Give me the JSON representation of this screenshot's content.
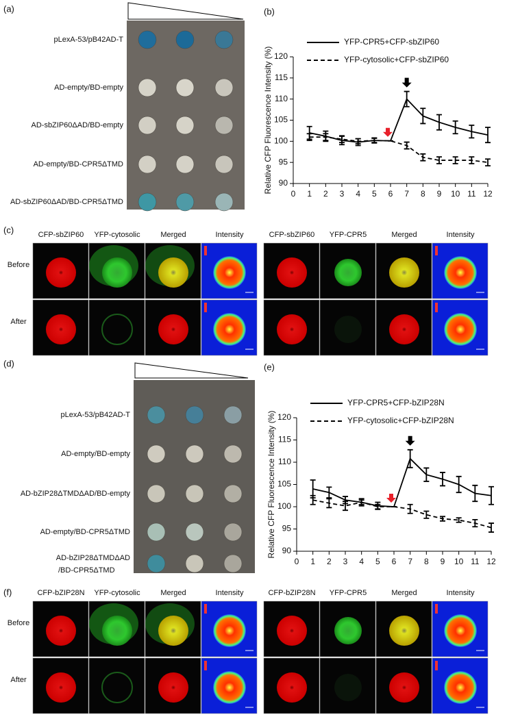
{
  "panels": {
    "a": {
      "label": "(a)",
      "rows": [
        "pLexA-53/pB42AD-T",
        "AD-empty/BD-empty",
        "AD-sbZIP60ΔAD/BD-empty",
        "AD-empty/BD-CPR5ΔTMD",
        "AD-sbZIP60ΔAD/BD-CPR5ΔTMD"
      ]
    },
    "c": {
      "label": "(c)",
      "rows": [
        "Before",
        "After"
      ],
      "groups": [
        [
          "CFP-sbZIP60",
          "YFP-cytosolic",
          "Merged",
          "Intensity"
        ],
        [
          "CFP-sbZIP60",
          "YFP-CPR5",
          "Merged",
          "Intensity"
        ]
      ]
    },
    "d": {
      "label": "(d)",
      "rows": [
        "pLexA-53/pB42AD-T",
        "AD-empty/BD-empty",
        "AD-bZIP28ΔTMDΔAD/BD-empty",
        "AD-empty/BD-CPR5ΔTMD",
        [
          "AD-bZIP28ΔTMDΔAD",
          "/BD-CPR5ΔTMD"
        ]
      ]
    },
    "f": {
      "label": "(f)",
      "rows": [
        "Before",
        "After"
      ],
      "groups": [
        [
          "CFP-bZIP28N",
          "YFP-cytosolic",
          "Merged",
          "Intensity"
        ],
        [
          "CFP-bZIP28N",
          "YFP-CPR5",
          "Merged",
          "Intensity"
        ]
      ]
    }
  },
  "chart_data": [
    {
      "type": "line",
      "panel_label": "(b)",
      "y_label": "Relative CFP Fluorescence Intensity (%)",
      "x": [
        1,
        2,
        3,
        4,
        5,
        6,
        7,
        8,
        9,
        10,
        11,
        12
      ],
      "xlim": [
        0,
        12
      ],
      "xticks": [
        0,
        1,
        2,
        3,
        4,
        5,
        6,
        7,
        8,
        9,
        10,
        11,
        12
      ],
      "ylim": [
        90,
        120
      ],
      "yticks": [
        90,
        95,
        100,
        105,
        110,
        115,
        120
      ],
      "series": [
        {
          "name": "YFP-CPR5+CFP-sbZIP60",
          "color": "#000000",
          "style": "solid",
          "values": [
            102,
            101.2,
            100.2,
            99.8,
            100.2,
            100.1,
            110,
            106,
            104.5,
            103.3,
            102.3,
            101.5
          ],
          "errors": [
            1.5,
            1.2,
            1,
            0.8,
            0.6,
            0,
            1.8,
            1.8,
            1.8,
            1.5,
            1.5,
            1.8
          ]
        },
        {
          "name": "YFP-cytosolic+CFP-sbZIP60",
          "color": "#000000",
          "style": "dashed",
          "values": [
            101,
            101,
            100.5,
            100,
            100.2,
            100.1,
            99,
            96.2,
            95.5,
            95.5,
            95.5,
            95
          ],
          "errors": [
            0.8,
            0.8,
            0.8,
            0.6,
            0.5,
            0,
            0.8,
            0.8,
            0.8,
            0.8,
            0.8,
            0.8
          ]
        }
      ]
    },
    {
      "type": "line",
      "panel_label": "(e)",
      "y_label": "Relative CFP Fluorescence Intensity (%)",
      "x": [
        1,
        2,
        3,
        4,
        5,
        6,
        7,
        8,
        9,
        10,
        11,
        12
      ],
      "xlim": [
        0,
        12
      ],
      "xticks": [
        0,
        1,
        2,
        3,
        4,
        5,
        6,
        7,
        8,
        9,
        10,
        11,
        12
      ],
      "ylim": [
        90,
        120
      ],
      "yticks": [
        90,
        95,
        100,
        105,
        110,
        115,
        120
      ],
      "series": [
        {
          "name": "YFP-CPR5+CFP-bZIP28N",
          "color": "#000000",
          "style": "solid",
          "values": [
            104,
            103.2,
            101.5,
            101,
            100.2,
            100,
            110.8,
            107.2,
            106.2,
            105,
            103,
            102.5
          ],
          "errors": [
            2,
            1.2,
            0.8,
            0.8,
            0.8,
            0,
            2,
            1.5,
            1.5,
            1.8,
            1.8,
            2
          ]
        },
        {
          "name": "YFP-cytosolic+CFP-bZIP28N",
          "color": "#000000",
          "style": "dashed",
          "values": [
            101.5,
            100.8,
            100.2,
            101,
            100,
            100,
            99.5,
            98.2,
            97.3,
            97,
            96.3,
            95.3
          ],
          "errors": [
            1,
            1,
            1,
            0.5,
            0.5,
            0,
            1,
            0.8,
            0.5,
            0.5,
            0.8,
            1
          ]
        }
      ]
    }
  ]
}
